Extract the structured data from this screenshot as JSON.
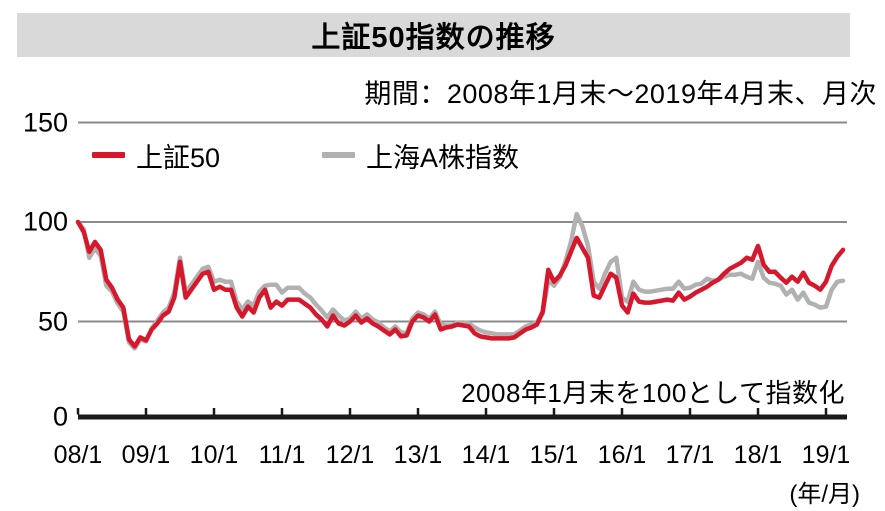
{
  "header": {
    "title": "上証50指数の推移",
    "subtitle": "期間：2008年1月末～2019年4月末、月次"
  },
  "legend": [
    {
      "label": "上証50",
      "color": "#d7182c"
    },
    {
      "label": "上海A株指数",
      "color": "#b1b1b1"
    }
  ],
  "annotation": "2008年1月末を100として指数化",
  "axis_unit_label": "(年/月)",
  "colors": {
    "accent_red": "#d7182c",
    "line_gray": "#b1b1b1",
    "grid_gray": "#8a8a8a",
    "axis_black": "#1a1a1a",
    "banner_bg": "#d9d9d9"
  },
  "chart_data": {
    "type": "line",
    "title": "上証50指数の推移",
    "note": "2008年1月末を100として指数化",
    "x_start": "2008/1",
    "x_end": "2019/4",
    "frequency": "monthly",
    "x_tick_labels": [
      "08/1",
      "09/1",
      "10/1",
      "11/1",
      "12/1",
      "13/1",
      "14/1",
      "15/1",
      "16/1",
      "17/1",
      "18/1",
      "19/1"
    ],
    "y_ticks": [
      0,
      50,
      100,
      150
    ],
    "ylim": [
      0,
      150
    ],
    "grid": true,
    "legend_position": "top-left",
    "series": [
      {
        "name": "上海A株指数",
        "color": "#b1b1b1",
        "values": [
          100,
          96.5,
          82,
          87,
          83,
          68,
          65,
          59,
          55,
          39.5,
          36.5,
          41,
          40,
          46.5,
          50.5,
          54.5,
          57,
          64.5,
          82,
          64.5,
          68.5,
          72.5,
          76.5,
          77.5,
          70,
          71,
          70,
          70,
          60,
          56,
          60,
          58,
          65,
          68,
          68.5,
          68.5,
          64.5,
          67,
          67,
          67,
          64,
          62,
          58.5,
          55.5,
          52,
          56,
          53,
          50.5,
          51.5,
          55,
          51.5,
          53.5,
          51,
          49.5,
          47,
          45,
          47.5,
          44.5,
          44,
          51.5,
          54.5,
          53.5,
          51.5,
          55,
          48.5,
          48,
          48,
          49.5,
          49.5,
          49,
          47,
          45.5,
          44.5,
          44,
          43.5,
          43.5,
          43.5,
          43.5,
          45.5,
          47.5,
          48.5,
          49.5,
          54,
          71,
          68,
          72,
          80,
          90,
          104,
          98,
          88,
          70,
          66.5,
          74,
          80,
          82,
          62,
          60,
          70,
          66,
          65,
          65,
          65.5,
          66,
          66.5,
          66.5,
          70,
          66.5,
          67,
          68.5,
          69,
          71.5,
          70.5,
          71,
          72.5,
          73.5,
          73.5,
          74,
          72.5,
          71.5,
          80,
          72,
          69.5,
          69,
          68,
          63.5,
          66,
          61,
          64.5,
          59.5,
          58.5,
          57,
          57.5,
          66,
          70,
          70.5
        ]
      },
      {
        "name": "上証50",
        "color": "#d7182c",
        "values": [
          100,
          95,
          85,
          90,
          86,
          71,
          67,
          61,
          57,
          41,
          37.5,
          42,
          40.5,
          46,
          49,
          53,
          55,
          62,
          80,
          62,
          66,
          70,
          74,
          75,
          66,
          67.5,
          66,
          66,
          57,
          52.5,
          57.5,
          54.5,
          62,
          66,
          57,
          60,
          58,
          61,
          61,
          61,
          59,
          57,
          53.5,
          51,
          47.5,
          53,
          49,
          48,
          50,
          53,
          49.5,
          51.5,
          49,
          47.5,
          45.5,
          43.5,
          46,
          42.5,
          43,
          50,
          53,
          52,
          50,
          53.5,
          46,
          47,
          47.5,
          48.5,
          48,
          47.5,
          44,
          42.5,
          42,
          41.5,
          41.5,
          41.5,
          41.5,
          42,
          44,
          46,
          47,
          48.5,
          55,
          76,
          70,
          73,
          78,
          85,
          92,
          87,
          82,
          63,
          62,
          68,
          74,
          72,
          58,
          54.5,
          64,
          60,
          59.5,
          59.5,
          60,
          60.5,
          61,
          60.5,
          64.5,
          61,
          62.5,
          64.5,
          66,
          67.5,
          69.5,
          71,
          74,
          76.5,
          78,
          79.5,
          82,
          81,
          88,
          78.5,
          75,
          75,
          72,
          69.5,
          72.5,
          70,
          74.5,
          69.5,
          68,
          66,
          70,
          78,
          82.5,
          86
        ]
      }
    ]
  }
}
